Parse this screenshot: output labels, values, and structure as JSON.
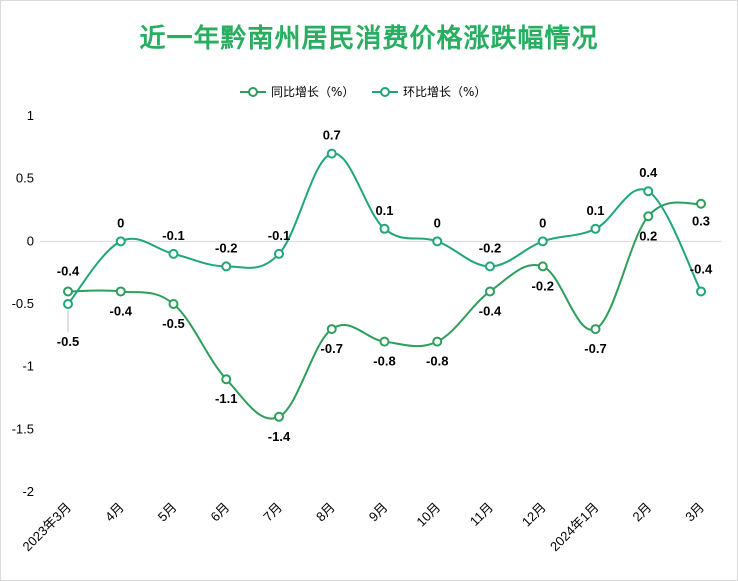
{
  "chart_data": {
    "type": "line",
    "title": "近一年黔南州居民消费价格涨跌幅情况",
    "categories": [
      "2023年3月",
      "4月",
      "5月",
      "6月",
      "7月",
      "8月",
      "9月",
      "10月",
      "11月",
      "12月",
      "2024年1月",
      "2月",
      "3月"
    ],
    "series": [
      {
        "name": "同比增长（%）",
        "values": [
          -0.4,
          -0.4,
          -0.5,
          -1.1,
          -1.4,
          -0.7,
          -0.8,
          -0.8,
          -0.4,
          -0.2,
          -0.7,
          0.2,
          0.3
        ],
        "color": "#2e9e5b"
      },
      {
        "name": "环比增长（%）",
        "values": [
          -0.5,
          0,
          -0.1,
          -0.2,
          -0.1,
          0.7,
          0.1,
          0,
          -0.2,
          0,
          0.1,
          0.4,
          -0.4
        ],
        "color": "#20a67a"
      }
    ],
    "ylim": [
      -2,
      1
    ],
    "yticks": [
      "1",
      "0.5",
      "0",
      "-0.5",
      "-1",
      "-1.5",
      "-2"
    ],
    "legend_position": "top",
    "grid": false
  }
}
